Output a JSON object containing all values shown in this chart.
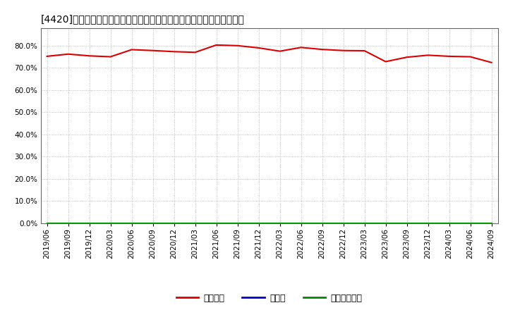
{
  "title": "[4420]　自己資本、のれん、繰延税金資産の総資産に対する比率の推移",
  "ylim": [
    0.0,
    0.88
  ],
  "yticks": [
    0.0,
    0.1,
    0.2,
    0.3,
    0.4,
    0.5,
    0.6,
    0.7,
    0.8
  ],
  "background_color": "#ffffff",
  "plot_bg_color": "#ffffff",
  "grid_color": "#999999",
  "legend_labels": [
    "自己資本",
    "のれん",
    "繰延税金資産"
  ],
  "legend_colors": [
    "#dd0000",
    "#0000cc",
    "#008800"
  ],
  "dates": [
    "2019/06",
    "2019/09",
    "2019/12",
    "2020/03",
    "2020/06",
    "2020/09",
    "2020/12",
    "2021/03",
    "2021/06",
    "2021/09",
    "2021/12",
    "2022/03",
    "2022/06",
    "2022/09",
    "2022/12",
    "2023/03",
    "2023/06",
    "2023/09",
    "2023/12",
    "2024/03",
    "2024/06",
    "2024/09"
  ],
  "jiko_shihon": [
    0.752,
    0.762,
    0.754,
    0.75,
    0.782,
    0.778,
    0.773,
    0.77,
    0.803,
    0.8,
    0.79,
    0.775,
    0.792,
    0.783,
    0.778,
    0.777,
    0.728,
    0.748,
    0.757,
    0.752,
    0.75,
    0.724
  ],
  "noren": [
    0,
    0,
    0,
    0,
    0,
    0,
    0,
    0,
    0,
    0,
    0,
    0,
    0,
    0,
    0,
    0,
    0,
    0,
    0,
    0,
    0,
    0
  ],
  "kurinobe": [
    0,
    0,
    0,
    0,
    0,
    0,
    0,
    0,
    0,
    0,
    0,
    0,
    0,
    0,
    0,
    0,
    0,
    0,
    0,
    0,
    0,
    0
  ],
  "title_fontsize": 10,
  "tick_fontsize": 7.5,
  "legend_fontsize": 9
}
